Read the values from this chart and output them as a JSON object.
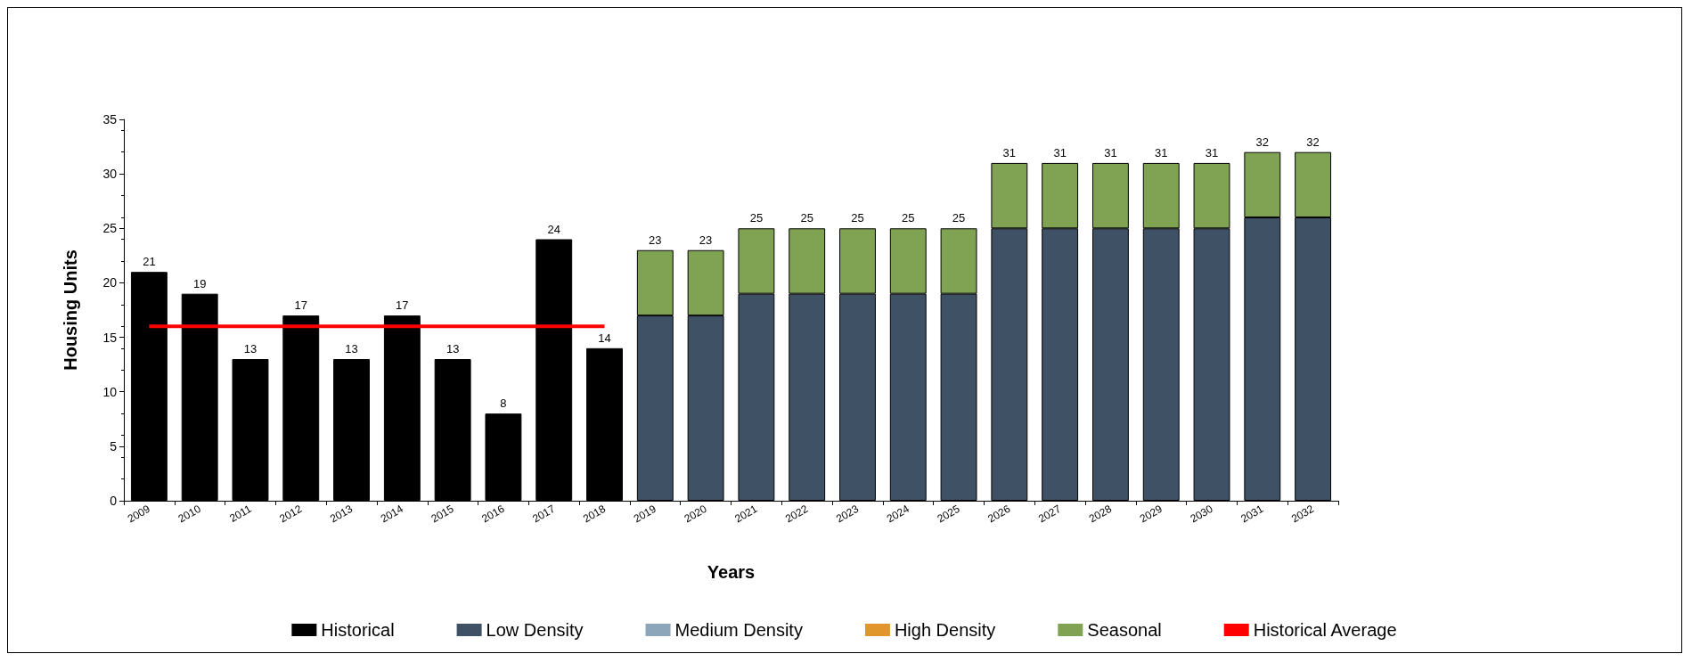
{
  "chart_data": {
    "type": "bar",
    "stacked": true,
    "xlabel": "Years",
    "ylabel": "Housing Units",
    "categories": [
      "2009",
      "2010",
      "2011",
      "2012",
      "2013",
      "2014",
      "2015",
      "2016",
      "2017",
      "2018",
      "2019",
      "2020",
      "2021",
      "2022",
      "2023",
      "2024",
      "2025",
      "2026",
      "2027",
      "2028",
      "2029",
      "2030",
      "2031",
      "2032"
    ],
    "series": [
      {
        "name": "Historical",
        "color": "#000000",
        "values": [
          21,
          19,
          13,
          17,
          13,
          17,
          13,
          8,
          24,
          14,
          null,
          null,
          null,
          null,
          null,
          null,
          null,
          null,
          null,
          null,
          null,
          null,
          null,
          null
        ]
      },
      {
        "name": "Low Density",
        "color": "#3f5164",
        "values": [
          null,
          null,
          null,
          null,
          null,
          null,
          null,
          null,
          null,
          null,
          17,
          17,
          19,
          19,
          19,
          19,
          19,
          25,
          25,
          25,
          25,
          25,
          26,
          26
        ]
      },
      {
        "name": "Medium Density",
        "color": "#8da6ba",
        "values": [
          null,
          null,
          null,
          null,
          null,
          null,
          null,
          null,
          null,
          null,
          null,
          null,
          null,
          null,
          null,
          null,
          null,
          null,
          null,
          null,
          null,
          null,
          null,
          null
        ]
      },
      {
        "name": "High Density",
        "color": "#e0962a",
        "values": [
          null,
          null,
          null,
          null,
          null,
          null,
          null,
          null,
          null,
          null,
          null,
          null,
          null,
          null,
          null,
          null,
          null,
          null,
          null,
          null,
          null,
          null,
          null,
          null
        ]
      },
      {
        "name": "Seasonal",
        "color": "#7fa352",
        "values": [
          null,
          null,
          null,
          null,
          null,
          null,
          null,
          null,
          null,
          null,
          6,
          6,
          6,
          6,
          6,
          6,
          6,
          6,
          6,
          6,
          6,
          6,
          6,
          6
        ]
      },
      {
        "name": "Historical Average",
        "type": "line",
        "color": "#ff0000",
        "values": [
          16,
          16,
          16,
          16,
          16,
          16,
          16,
          16,
          16,
          16,
          null,
          null,
          null,
          null,
          null,
          null,
          null,
          null,
          null,
          null,
          null,
          null,
          null,
          null
        ]
      }
    ],
    "totals": [
      "21",
      "19",
      "13",
      "17",
      "13",
      "17",
      "13",
      "8",
      "24",
      "14",
      "23",
      "23",
      "25",
      "25",
      "25",
      "25",
      "25",
      "31",
      "31",
      "31",
      "31",
      "31",
      "32",
      "32"
    ],
    "ylim": [
      0,
      35
    ],
    "yticks": [
      0,
      5,
      10,
      15,
      20,
      25,
      30,
      35
    ],
    "grid": false,
    "legend": "bottom",
    "marker": "none",
    "line_style": "solid"
  }
}
